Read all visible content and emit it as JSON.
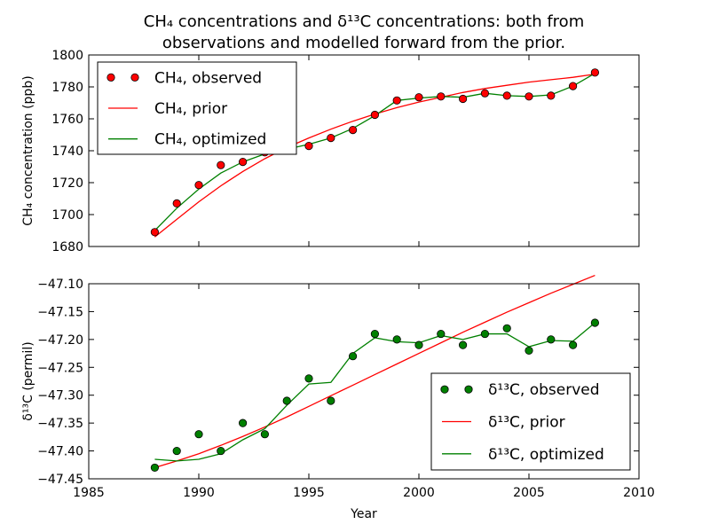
{
  "figure": {
    "title_line1": "CH₄ concentrations and δ¹³C concentrations: both from",
    "title_line2": "observations and modelled forward from the prior."
  },
  "chart_data": [
    {
      "type": "line",
      "xlabel": "",
      "ylabel": "CH₄ concentration (ppb)",
      "xlim": [
        1985,
        2010
      ],
      "ylim": [
        1680,
        1800
      ],
      "yticks": [
        1680,
        1700,
        1720,
        1740,
        1760,
        1780,
        1800
      ],
      "yticklabels": [
        "1680",
        "1700",
        "1720",
        "1740",
        "1760",
        "1780",
        "1800"
      ],
      "legend_position": "top-left",
      "series": [
        {
          "name": "CH₄, observed",
          "style": "markers",
          "color": "#ff0000",
          "x": [
            1988,
            1989,
            1990,
            1991,
            1992,
            1993,
            1994,
            1995,
            1996,
            1997,
            1998,
            1999,
            2000,
            2001,
            2002,
            2003,
            2004,
            2005,
            2006,
            2007,
            2008
          ],
          "y": [
            1689,
            1707,
            1718.5,
            1731,
            1733,
            1739,
            1742,
            1743,
            1748,
            1753,
            1762.5,
            1771.5,
            1773.5,
            1774,
            1772.5,
            1776,
            1774.5,
            1774,
            1774.5,
            1780.5,
            1789
          ]
        },
        {
          "name": "CH₄, prior",
          "style": "line",
          "color": "#ff0000",
          "x": [
            1988,
            1989,
            1990,
            1991,
            1992,
            1993,
            1994,
            1995,
            1996,
            1997,
            1998,
            1999,
            2000,
            2001,
            2002,
            2003,
            2004,
            2005,
            2006,
            2007,
            2008
          ],
          "y": [
            1686,
            1697,
            1708,
            1718,
            1727,
            1735,
            1742,
            1748,
            1753.5,
            1758.5,
            1763,
            1767,
            1770.5,
            1773.5,
            1776.5,
            1779,
            1781,
            1783,
            1784.5,
            1786,
            1788
          ]
        },
        {
          "name": "CH₄, optimized",
          "style": "line",
          "color": "#008000",
          "x": [
            1988,
            1989,
            1990,
            1991,
            1992,
            1993,
            1994,
            1995,
            1996,
            1997,
            1998,
            1999,
            2000,
            2001,
            2002,
            2003,
            2004,
            2005,
            2006,
            2007,
            2008
          ],
          "y": [
            1690,
            1704,
            1716,
            1726,
            1733,
            1738,
            1741,
            1744,
            1748,
            1754,
            1762,
            1771.5,
            1773,
            1774,
            1773.5,
            1776,
            1774.5,
            1774,
            1775,
            1780.5,
            1788.5
          ]
        }
      ]
    },
    {
      "type": "line",
      "xlabel": "Year",
      "ylabel": "δ¹³C (permil)",
      "xlim": [
        1985,
        2010
      ],
      "ylim": [
        -47.45,
        -47.1
      ],
      "xticks": [
        1985,
        1990,
        1995,
        2000,
        2005,
        2010
      ],
      "xticklabels": [
        "1985",
        "1990",
        "1995",
        "2000",
        "2005",
        "2010"
      ],
      "yticks": [
        -47.45,
        -47.4,
        -47.35,
        -47.3,
        -47.25,
        -47.2,
        -47.15,
        -47.1
      ],
      "yticklabels": [
        "−47.45",
        "−47.40",
        "−47.35",
        "−47.30",
        "−47.25",
        "−47.20",
        "−47.15",
        "−47.10"
      ],
      "legend_position": "bottom-right",
      "series": [
        {
          "name": "δ¹³C, observed",
          "style": "markers",
          "color": "#008000",
          "x": [
            1988,
            1989,
            1990,
            1991,
            1992,
            1993,
            1994,
            1995,
            1996,
            1997,
            1998,
            1999,
            2000,
            2001,
            2002,
            2003,
            2004,
            2005,
            2006,
            2007,
            2008
          ],
          "y": [
            -47.43,
            -47.4,
            -47.37,
            -47.4,
            -47.35,
            -47.37,
            -47.31,
            -47.27,
            -47.31,
            -47.23,
            -47.19,
            -47.2,
            -47.21,
            -47.19,
            -47.21,
            -47.19,
            -47.18,
            -47.22,
            -47.2,
            -47.21,
            -47.17
          ]
        },
        {
          "name": "δ¹³C, prior",
          "style": "line",
          "color": "#ff0000",
          "x": [
            1988,
            1989,
            1990,
            1991,
            1992,
            1993,
            1994,
            1995,
            1996,
            1997,
            1998,
            1999,
            2000,
            2001,
            2002,
            2003,
            2004,
            2005,
            2006,
            2007,
            2008
          ],
          "y": [
            -47.43,
            -47.418,
            -47.405,
            -47.39,
            -47.374,
            -47.357,
            -47.339,
            -47.32,
            -47.301,
            -47.282,
            -47.263,
            -47.244,
            -47.225,
            -47.206,
            -47.187,
            -47.169,
            -47.151,
            -47.134,
            -47.117,
            -47.101,
            -47.085
          ]
        },
        {
          "name": "δ¹³C, optimized",
          "style": "line",
          "color": "#008000",
          "x": [
            1988,
            1989,
            1990,
            1991,
            1992,
            1993,
            1994,
            1995,
            1996,
            1997,
            1998,
            1999,
            2000,
            2001,
            2002,
            2003,
            2004,
            2005,
            2006,
            2007,
            2008
          ],
          "y": [
            -47.415,
            -47.418,
            -47.415,
            -47.405,
            -47.38,
            -47.36,
            -47.318,
            -47.28,
            -47.277,
            -47.225,
            -47.197,
            -47.204,
            -47.206,
            -47.193,
            -47.2,
            -47.19,
            -47.19,
            -47.213,
            -47.202,
            -47.203,
            -47.17
          ]
        }
      ]
    }
  ]
}
